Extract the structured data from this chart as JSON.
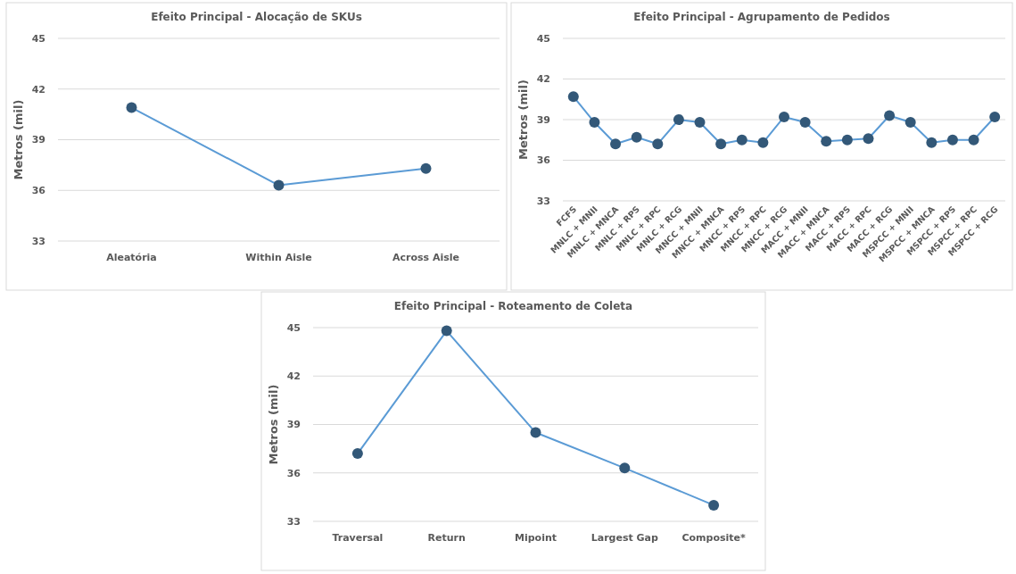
{
  "chart_data": [
    {
      "type": "line",
      "title": "Efeito Principal -  Alocação de SKUs",
      "ylabel": "Metros (mil)",
      "categories": [
        "Aleatória",
        "Within Aisle",
        "Across Aisle"
      ],
      "series": [
        {
          "color": "#5b9bd5",
          "values": [
            40.9,
            36.3,
            37.3
          ]
        }
      ],
      "ylim": [
        33,
        45
      ],
      "yticks": [
        33,
        36,
        39,
        42,
        45
      ],
      "grid": "y",
      "marker": "circle",
      "legend": false
    },
    {
      "type": "line",
      "title": "Efeito Principal - Agrupamento de Pedidos",
      "ylabel": "Metros (mil)",
      "categories": [
        "FCFS",
        "MNLC + MNII",
        "MNLC + MNCA",
        "MNLC + RPS",
        "MNLC + RPC",
        "MNLC + RCG",
        "MNCC + MNII",
        "MNCC + MNCA",
        "MNCC + RPS",
        "MNCC + RPC",
        "MNCC + RCG",
        "MACC + MNII",
        "MACC + MNCA",
        "MACC + RPS",
        "MACC + RPC",
        "MACC + RCG",
        "MSPCC + MNII",
        "MSPCC + MNCA",
        "MSPCC + RPS",
        "MSPCC + RPC",
        "MSPCC + RCG"
      ],
      "series": [
        {
          "color": "#5b9bd5",
          "values": [
            40.7,
            38.8,
            37.2,
            37.7,
            37.2,
            39.0,
            38.8,
            37.2,
            37.5,
            37.3,
            39.2,
            38.8,
            37.4,
            37.5,
            37.6,
            39.3,
            38.8,
            37.3,
            37.5,
            37.5,
            39.2
          ]
        }
      ],
      "ylim": [
        33,
        45
      ],
      "yticks": [
        33,
        36,
        39,
        42,
        45
      ],
      "grid": "y",
      "marker": "circle",
      "legend": false
    },
    {
      "type": "line",
      "title": "Efeito Principal - Roteamento de Coleta",
      "ylabel": "Metros (mil)",
      "categories": [
        "Traversal",
        "Return",
        "Mipoint",
        "Largest Gap",
        "Composite*"
      ],
      "series": [
        {
          "color": "#5b9bd5",
          "values": [
            37.2,
            44.8,
            38.5,
            36.3,
            34.0
          ]
        }
      ],
      "ylim": [
        33,
        45
      ],
      "yticks": [
        33,
        36,
        39,
        42,
        45
      ],
      "grid": "y",
      "marker": "circle",
      "legend": false
    }
  ]
}
